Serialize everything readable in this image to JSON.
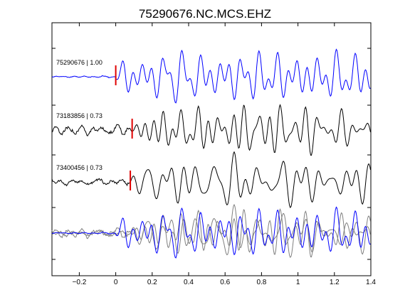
{
  "chart_data": {
    "type": "line",
    "title": "75290676.NC.MCS.EHZ",
    "xlabel": "",
    "ylabel": "",
    "xlim": [
      -0.35,
      1.4
    ],
    "x_ticks": [
      -0.2,
      0,
      0.2,
      0.4,
      0.6,
      0.8,
      1,
      1.2,
      1.4
    ],
    "x_tick_labels": [
      "−0.2",
      "0",
      "0.2",
      "0.4",
      "0.6",
      "0.8",
      "1",
      "1.2",
      "1.4"
    ],
    "grid": false,
    "colors": {
      "reference": "#0000ff",
      "other": "#000000",
      "overlay_other": "#808080",
      "pick": "#e00000"
    },
    "traces": [
      {
        "label": "75290676 | 1.00",
        "event_id": "75290676",
        "cc": 1.0,
        "pick_time": 0.0,
        "color": "#0000ff"
      },
      {
        "label": "73183856 | 0.73",
        "event_id": "73183856",
        "cc": 0.73,
        "pick_time": 0.09,
        "color": "#000000"
      },
      {
        "label": "73400456 | 0.73",
        "event_id": "73400456",
        "cc": 0.73,
        "pick_time": 0.08,
        "color": "#000000"
      }
    ],
    "overlay": {
      "label": ""
    }
  }
}
